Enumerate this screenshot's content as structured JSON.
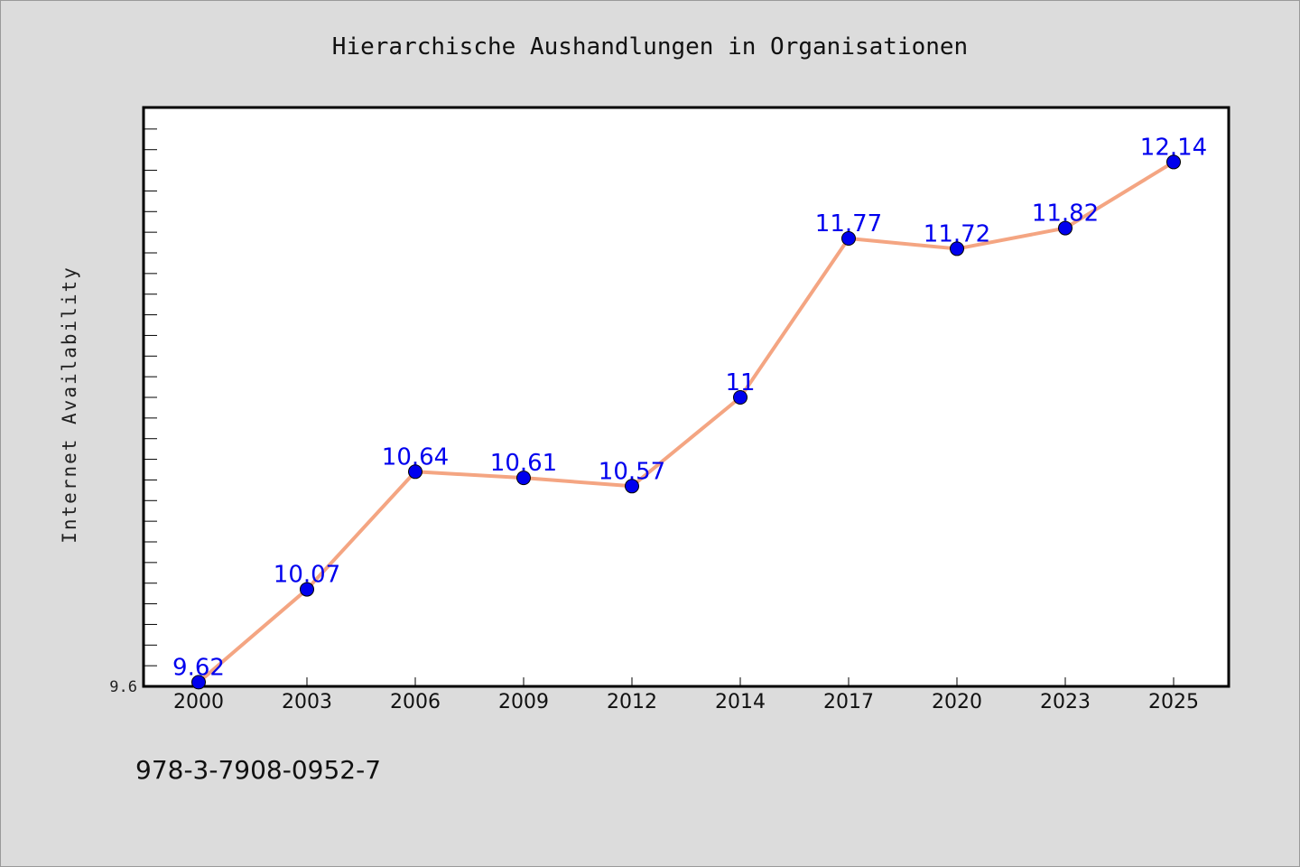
{
  "chart_data": {
    "type": "line",
    "title": "Hierarchische Aushandlungen in Organisationen",
    "ylabel": "Internet Availability",
    "xlabel": "",
    "categories": [
      "2000",
      "2003",
      "2006",
      "2009",
      "2012",
      "2014",
      "2017",
      "2020",
      "2023",
      "2025"
    ],
    "series": [
      {
        "values": [
          9.62,
          10.07,
          10.64,
          10.61,
          10.57,
          11.0,
          11.77,
          11.72,
          11.82,
          12.14
        ],
        "labels": [
          "9.62",
          "10.07",
          "10.64",
          "10.61",
          "10.57",
          "11",
          "11.77",
          "11.72",
          "11.82",
          "12.14"
        ]
      }
    ],
    "ylim": [
      9.6,
      12.4
    ],
    "y_tick_label": "9.6",
    "grid": false,
    "line_color": "#f4a582",
    "marker_color": "#0000ee"
  },
  "footer": {
    "isbn": "978-3-7908-0952-7"
  }
}
